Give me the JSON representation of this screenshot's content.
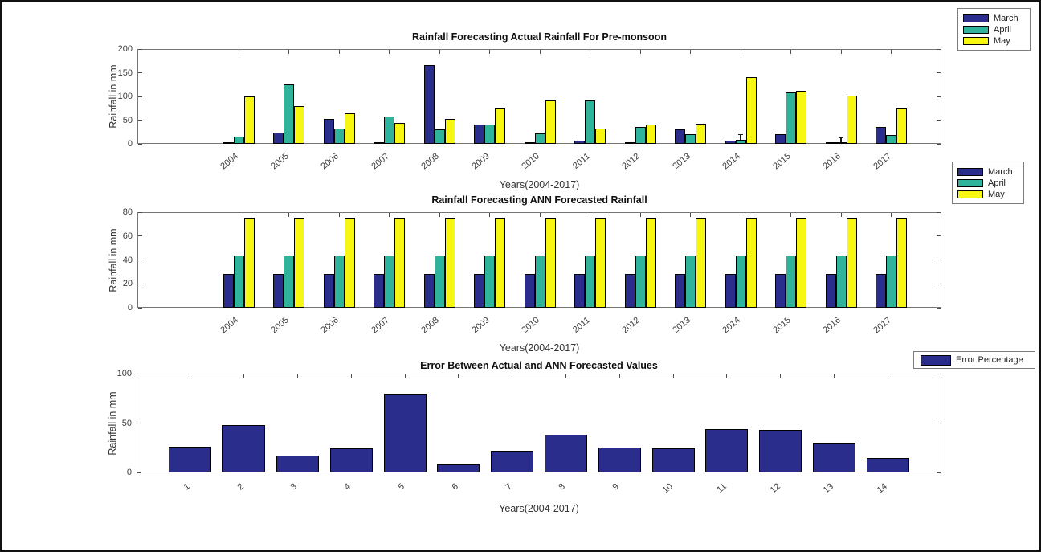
{
  "figure": {
    "background": "#ffffff",
    "border_color": "#121212"
  },
  "colors": {
    "march": "#2B2D8C",
    "april": "#2FB39B",
    "may": "#F7F713",
    "error_bar": "#2B2D8C",
    "bar_outline": "#000000",
    "axis_line": "#757575",
    "tick_text": "#3c3c3c",
    "title_text": "#0f0f0f"
  },
  "chart_data": [
    {
      "id": "actual-rainfall",
      "type": "bar",
      "title": "Rainfall Forecasting Actual Rainfall For Pre-monsoon",
      "xlabel": "Years(2004-2017)",
      "ylabel": "Rainfall in mm",
      "ylim": [
        0,
        200
      ],
      "yticks": [
        0,
        50,
        100,
        150,
        200
      ],
      "grid": false,
      "legend_position": "outside-top-right",
      "categories": [
        "2004",
        "2005",
        "2006",
        "2007",
        "2008",
        "2009",
        "2010",
        "2011",
        "2012",
        "2013",
        "2014",
        "2015",
        "2016",
        "2017"
      ],
      "series": [
        {
          "name": "March",
          "color": "#2B2D8C",
          "values": [
            4,
            24,
            52,
            2,
            166,
            40,
            2,
            7,
            2,
            30,
            7,
            20,
            2,
            35
          ]
        },
        {
          "name": "April",
          "color": "#2FB39B",
          "values": [
            16,
            126,
            33,
            57,
            31,
            40,
            22,
            91,
            35,
            21,
            8,
            108,
            4,
            18
          ]
        },
        {
          "name": "May",
          "color": "#F7F713",
          "values": [
            100,
            80,
            65,
            44,
            53,
            74,
            91,
            33,
            41,
            42,
            141,
            112,
            102,
            74
          ]
        }
      ],
      "whiskers": [
        {
          "series": "April",
          "category": "2014",
          "top": 18
        },
        {
          "series": "April",
          "category": "2016",
          "top": 12
        }
      ]
    },
    {
      "id": "ann-forecast",
      "type": "bar",
      "title": "Rainfall Forecasting ANN Forecasted Rainfall",
      "xlabel": "Years(2004-2017)",
      "ylabel": "Rainfall in mm",
      "ylim": [
        0,
        80
      ],
      "yticks": [
        0,
        20,
        40,
        60,
        80
      ],
      "grid": false,
      "legend_position": "outside-top-right",
      "categories": [
        "2004",
        "2005",
        "2006",
        "2007",
        "2008",
        "2009",
        "2010",
        "2011",
        "2012",
        "2013",
        "2014",
        "2015",
        "2016",
        "2017"
      ],
      "series": [
        {
          "name": "March",
          "color": "#2B2D8C",
          "values": [
            28,
            28,
            28,
            28,
            28,
            28,
            28,
            28,
            28,
            28,
            28,
            28,
            28,
            28
          ]
        },
        {
          "name": "April",
          "color": "#2FB39B",
          "values": [
            44,
            44,
            44,
            44,
            44,
            44,
            44,
            44,
            44,
            44,
            44,
            44,
            44,
            44
          ]
        },
        {
          "name": "May",
          "color": "#F7F713",
          "values": [
            75,
            75,
            75,
            75,
            75,
            75,
            75,
            75,
            75,
            75,
            75,
            75,
            75,
            75
          ]
        }
      ],
      "whiskers": []
    },
    {
      "id": "error",
      "type": "bar",
      "title": "Error Between Actual and ANN Forecasted Values",
      "xlabel": "Years(2004-2017)",
      "ylabel": "Rainfall in mm",
      "ylim": [
        0,
        100
      ],
      "yticks": [
        0,
        50,
        100
      ],
      "grid": false,
      "legend_position": "outside-top-right",
      "categories": [
        "1",
        "2",
        "3",
        "4",
        "5",
        "6",
        "7",
        "8",
        "9",
        "10",
        "11",
        "12",
        "13",
        "14"
      ],
      "series": [
        {
          "name": "Error Percentage",
          "color": "#2B2D8C",
          "values": [
            26,
            48,
            17,
            24,
            80,
            8,
            22,
            38,
            25,
            24,
            44,
            43,
            30,
            15
          ]
        }
      ],
      "whiskers": []
    }
  ]
}
